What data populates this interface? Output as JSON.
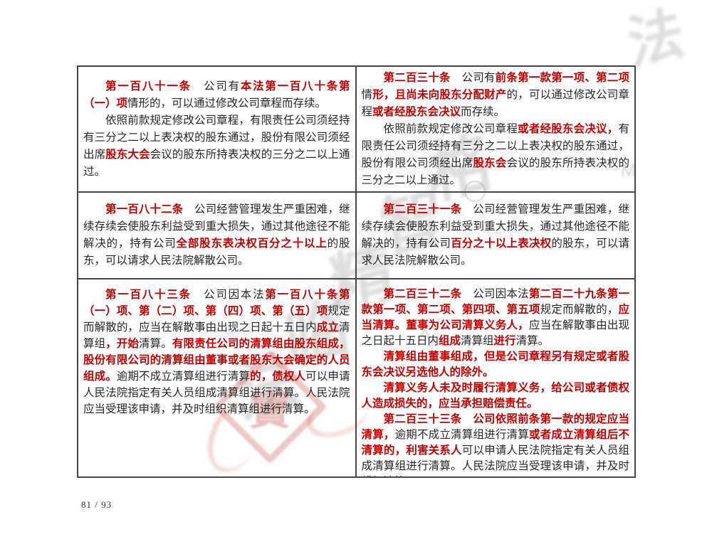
{
  "page": {
    "page_number": "81 / 93",
    "background": "#ffffff"
  },
  "colors": {
    "body_text": "#262626",
    "emphasis_red": "#c00000",
    "table_border": "#474747",
    "watermark_gray": "#9a9a9a",
    "watermark_red": "#cf5c5c"
  },
  "watermark": {
    "glyphs": [
      "法",
      "临",
      "精",
      "智",
      "格"
    ],
    "letters": [
      "M",
      "A"
    ],
    "seal_char": "寶"
  },
  "table": {
    "rows": [
      {
        "cells": [
          {
            "article": "第一百八十一条",
            "paragraphs": [
              [
                {
                  "t": "第一百八十一条",
                  "red": true
                },
                {
                  "t": "　公司有",
                  "red": false
                },
                {
                  "t": "本法第一百八十条第（一）项",
                  "red": true
                },
                {
                  "t": "情形的，可以通过修改公司章程而存续。",
                  "red": false
                }
              ],
              [
                {
                  "t": "依照前款规定修改公司章程，有限责任公司须经持有三分之二以上表决权的股东通过，股份有限公司须经出席",
                  "red": false
                },
                {
                  "t": "股东大会",
                  "red": true
                },
                {
                  "t": "会议的股东所持表决权的三分之二以上通过。",
                  "red": false
                }
              ]
            ]
          },
          {
            "article": "第二百三十条",
            "paragraphs": [
              [
                {
                  "t": "第二百三十条",
                  "red": true
                },
                {
                  "t": "　公司有",
                  "red": false
                },
                {
                  "t": "前条第一款第一项、第二项",
                  "red": true
                },
                {
                  "t": "情",
                  "red": false
                },
                {
                  "t": "形，且尚未向股东分配财产",
                  "red": true
                },
                {
                  "t": "的，可以通过修改公司章程",
                  "red": false
                },
                {
                  "t": "或者经股东会决议",
                  "red": true
                },
                {
                  "t": "而存续。",
                  "red": false
                }
              ],
              [
                {
                  "t": "依照前款规定修改公司章程",
                  "red": false
                },
                {
                  "t": "或者经股东会决议，",
                  "red": true
                },
                {
                  "t": "有限责任公司须经持有三分之二以上表决权的股东通过，股份有限公司须经出席",
                  "red": false
                },
                {
                  "t": "股东会",
                  "red": true
                },
                {
                  "t": "会议的股东所持表决权的三分之二以上通过。",
                  "red": false
                }
              ]
            ]
          }
        ]
      },
      {
        "cells": [
          {
            "article": "第一百八十二条",
            "paragraphs": [
              [
                {
                  "t": "第一百八十二条",
                  "red": true
                },
                {
                  "t": "　公司经营管理发生严重困难，继续存续会使股东利益受到重大损失，通过其他途径不能解决的，持有公司",
                  "red": false
                },
                {
                  "t": "全部股东表决权百分之十以上",
                  "red": true
                },
                {
                  "t": "的股东，可以请求人民法院解散公司。",
                  "red": false
                }
              ]
            ]
          },
          {
            "article": "第二百三十一条",
            "paragraphs": [
              [
                {
                  "t": "第二百三十一条",
                  "red": true
                },
                {
                  "t": "　公司经营管理发生严重困难，继续存续会使股东利益受到重大损失，通过其他途径不能解决的，持有公司",
                  "red": false
                },
                {
                  "t": "百分之十以上表决权",
                  "red": true
                },
                {
                  "t": "的股东，可以请求人民法院解散公司。",
                  "red": false
                }
              ]
            ]
          }
        ]
      },
      {
        "cells": [
          {
            "article": "第一百八十三条",
            "paragraphs": [
              [
                {
                  "t": "第一百八十三条",
                  "red": true
                },
                {
                  "t": "　公司因本法",
                  "red": false
                },
                {
                  "t": "第一百八十条第（一）项、第（二）项、第（四）项、第（五）项",
                  "red": true
                },
                {
                  "t": "规定而解散的，应当在解散事由出现之日起十五日内",
                  "red": false
                },
                {
                  "t": "成立",
                  "red": true
                },
                {
                  "t": "清算组",
                  "red": false
                },
                {
                  "t": "，开始",
                  "red": true
                },
                {
                  "t": "清算。",
                  "red": false
                },
                {
                  "t": "有限责任公司的清算组由股东组成，股份有限公司的清算组由董事或者股东大会确定的人员组成。",
                  "red": true
                },
                {
                  "t": "逾期不成立清算组进行清算",
                  "red": false
                },
                {
                  "t": "的，债权人",
                  "red": true
                },
                {
                  "t": "可以申请人民法院指定有关人员组成清算组进行清算。人民法院应当受理该申请，并及时组织清算组进行清算。",
                  "red": false
                }
              ]
            ]
          },
          {
            "article": "第二百三十二条 / 第二百三十三条",
            "paragraphs": [
              [
                {
                  "t": "第二百三十二条",
                  "red": true
                },
                {
                  "t": "　公司因本法",
                  "red": false
                },
                {
                  "t": "第二百二十九条第一款第一项、第二项、第四项、第五项",
                  "red": true
                },
                {
                  "t": "规定而解散的，",
                  "red": false
                },
                {
                  "t": "应当清算。董事为公司清算义务人，",
                  "red": true
                },
                {
                  "t": "应当在解散事由出现之日起十五日内",
                  "red": false
                },
                {
                  "t": "组成",
                  "red": true
                },
                {
                  "t": "清算组",
                  "red": false
                },
                {
                  "t": "进行",
                  "red": true
                },
                {
                  "t": "清算。",
                  "red": false
                }
              ],
              [
                {
                  "t": "清算组由董事组成，但是公司章程另有规定或者股东会决议另选他人的除外。",
                  "red": true
                }
              ],
              [
                {
                  "t": "清算义务人未及时履行清算义务，给公司或者债权人造成损失的，应当承担赔偿责任。",
                  "red": true
                }
              ],
              [
                {
                  "t": "第二百三十三条",
                  "red": true
                },
                {
                  "t": "　公司依照前条第一款的规定应当清算，",
                  "red": true
                },
                {
                  "t": "逾期不成立清算组进行清算",
                  "red": false
                },
                {
                  "t": "或者成立清算组后不清算的，利害关系人",
                  "red": true
                },
                {
                  "t": "可以申请人民法院指定有关人员组成清算组进行清算。人民法院应当受理该申请，并及时组织清算",
                  "red": false
                }
              ]
            ]
          }
        ]
      }
    ]
  }
}
